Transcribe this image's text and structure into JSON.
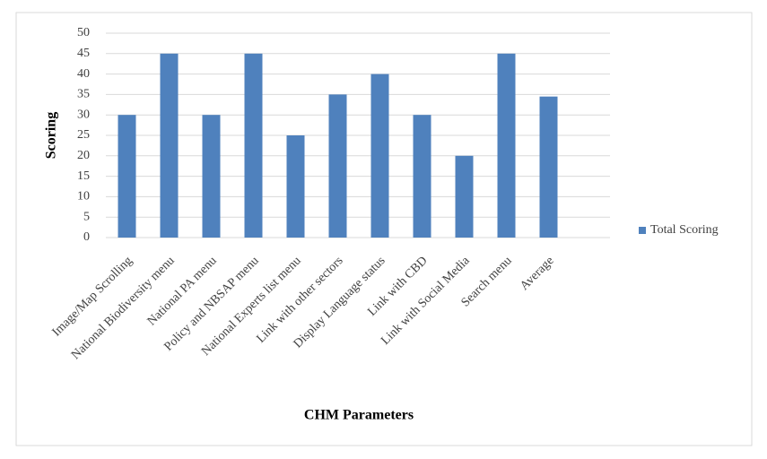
{
  "chart_data": {
    "type": "bar",
    "categories": [
      "Image/Map Scrolling",
      "National Biodiversity menu",
      "National PA menu",
      "Policy and NBSAP menu",
      "National Experts list menu",
      "Link with other sectors",
      "Display Language status",
      "Link with CBD",
      "Link with Social Media",
      "Search menu",
      "Average"
    ],
    "series": [
      {
        "name": "Total Scoring",
        "color": "#4f81bd",
        "values": [
          30,
          45,
          30,
          45,
          25,
          35,
          40,
          30,
          20,
          45,
          34.5
        ]
      }
    ],
    "x_label": "CHM Parameters",
    "y_label": "Scoring",
    "ylim": [
      0,
      50
    ],
    "yticks": [
      0,
      5,
      10,
      15,
      20,
      25,
      30,
      35,
      40,
      45,
      50
    ],
    "grid": true,
    "legend": "right"
  }
}
